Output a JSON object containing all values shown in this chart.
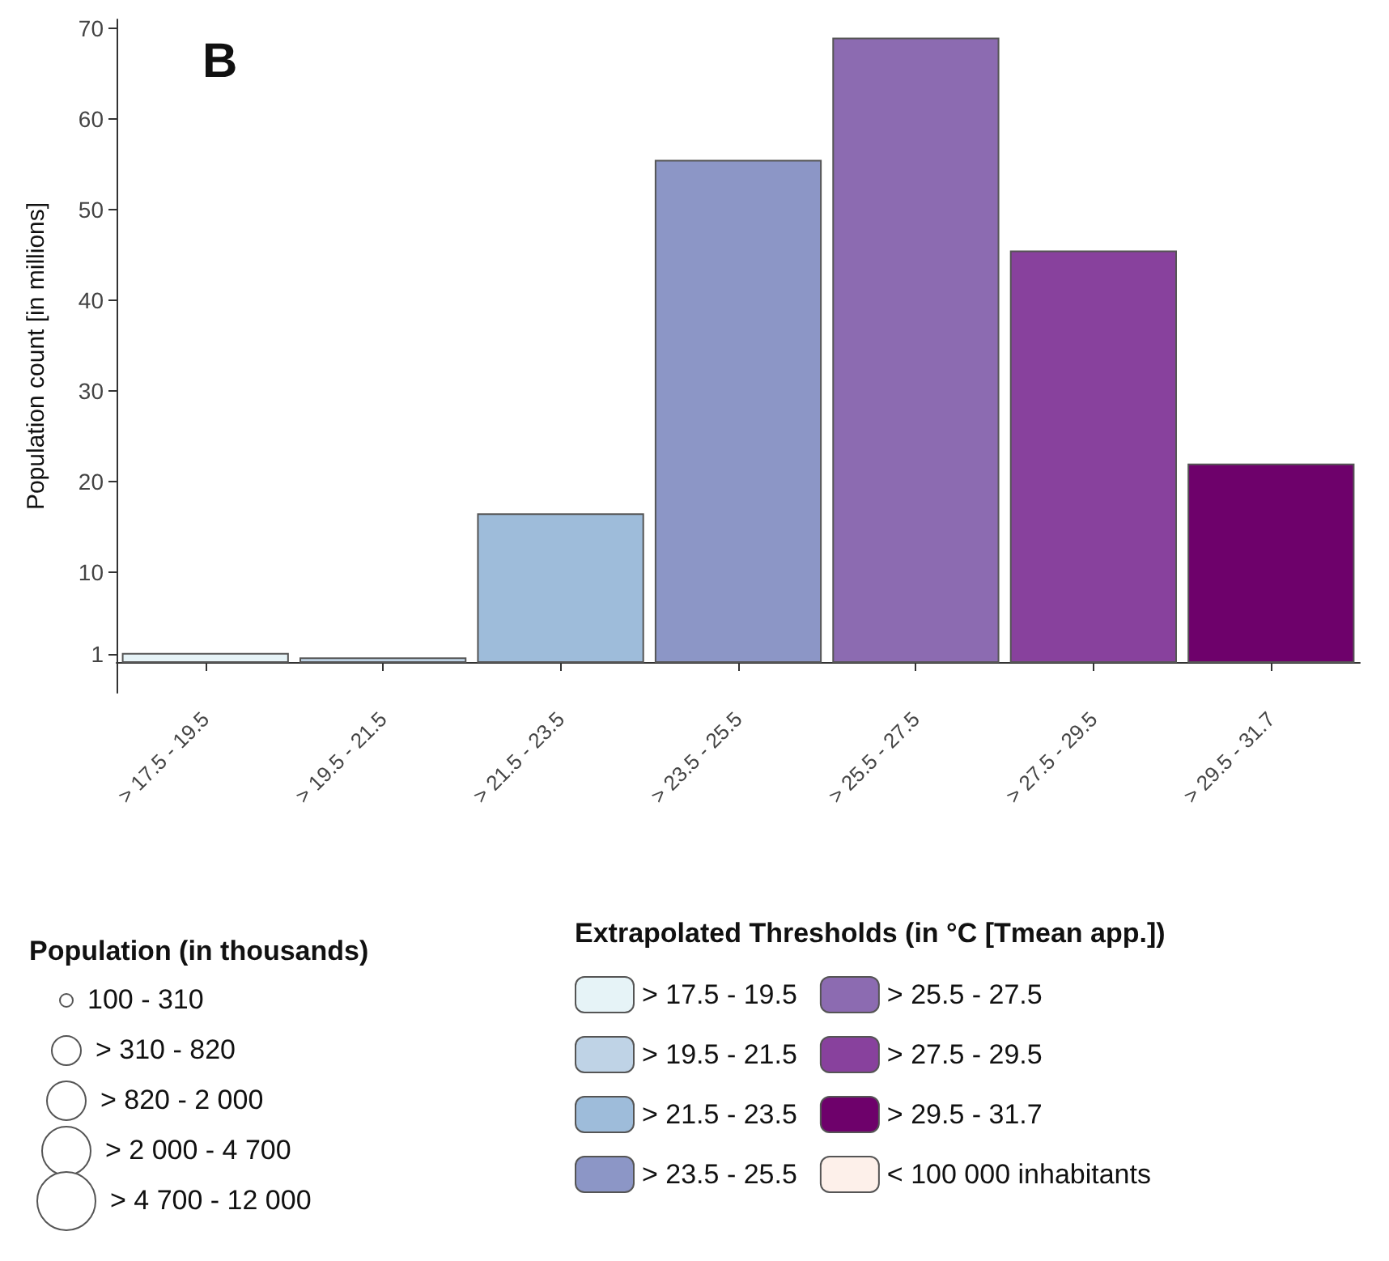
{
  "chart_data": {
    "type": "bar",
    "title": "B",
    "ylabel": "Population count [in millions]",
    "legend_title": "Extrapolated Thresholds (in °C [Tmean app.])",
    "categories": [
      "> 17.5 - 19.5",
      "> 19.5 - 21.5",
      "> 21.5 - 23.5",
      "> 23.5 - 25.5",
      "> 25.5 - 27.5",
      "> 27.5 - 29.5",
      "> 29.5 - 31.7"
    ],
    "series": [
      {
        "name": "> 17.5 - 19.5",
        "color": "#e6f3f7",
        "values": [
          1.1,
          null,
          null,
          null,
          null,
          null,
          null
        ]
      },
      {
        "name": "> 19.5 - 21.5",
        "color": "#bfd3e6",
        "values": [
          null,
          0.6,
          null,
          null,
          null,
          null,
          null
        ]
      },
      {
        "name": "> 21.5 - 23.5",
        "color": "#9ebcda",
        "values": [
          null,
          null,
          16.5,
          null,
          null,
          null,
          null
        ]
      },
      {
        "name": "> 23.5 - 25.5",
        "color": "#8c96c6",
        "values": [
          null,
          null,
          null,
          55.5,
          null,
          null,
          null
        ]
      },
      {
        "name": "> 25.5 - 27.5",
        "color": "#8c6bb1",
        "values": [
          null,
          null,
          null,
          null,
          69,
          null,
          null
        ]
      },
      {
        "name": "> 27.5 - 29.5",
        "color": "#88419d",
        "values": [
          null,
          null,
          null,
          null,
          null,
          45.5,
          null
        ]
      },
      {
        "name": "> 29.5 - 31.7",
        "color": "#6e016b",
        "values": [
          null,
          null,
          null,
          null,
          null,
          null,
          22
        ]
      },
      {
        "name": "< 100 000 inhabitants",
        "color": "#fdf0ea",
        "values": [
          null,
          null,
          null,
          null,
          null,
          null,
          null
        ]
      }
    ],
    "ylim": [
      -3.3,
      71
    ],
    "yticks": [
      1,
      10,
      20,
      30,
      40,
      50,
      60,
      70
    ],
    "grid": false,
    "legend": "bottom",
    "annotations": [
      "Population (in thousands)",
      "100 - 310",
      "> 310 - 820",
      "> 820 - 2 000",
      "> 2 000 - 4 700",
      "> 4 700 - 12 000"
    ]
  }
}
